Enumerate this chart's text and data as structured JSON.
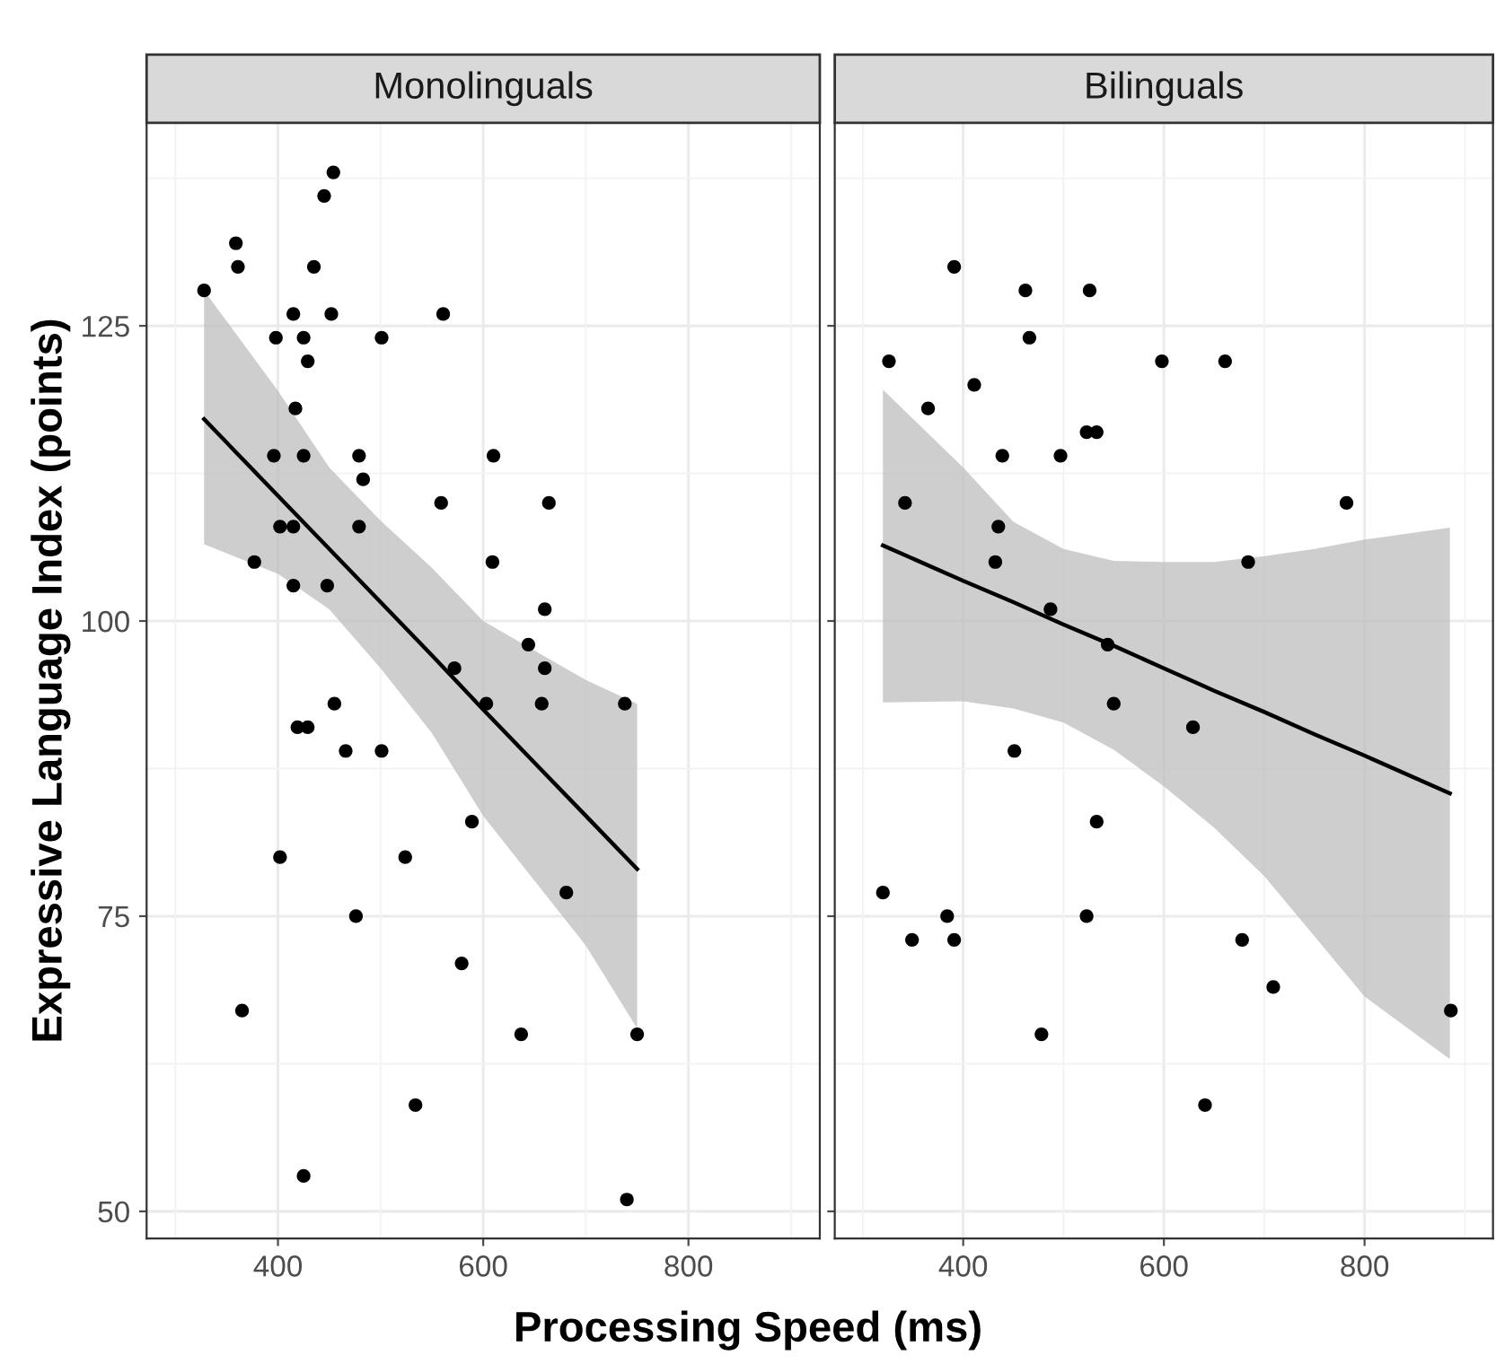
{
  "chart_data": [
    {
      "type": "scatter",
      "title": "Monolinguals",
      "xlabel": "Processing Speed (ms)",
      "ylabel": "Expressive Language Index (points)",
      "xlim": [
        272,
        928
      ],
      "ylim": [
        47.7,
        142.2
      ],
      "xticks": [
        400,
        600,
        800
      ],
      "yticks": [
        50,
        75,
        100,
        125
      ],
      "grid": true,
      "series": [
        {
          "marker": "circle",
          "color": "#000000",
          "x": [
            328,
            359,
            361,
            454,
            445,
            435,
            415,
            452,
            561,
            398,
            425,
            501,
            429,
            417,
            396,
            425,
            479,
            610,
            483,
            559,
            664,
            402,
            415,
            479,
            377,
            609,
            415,
            448,
            660,
            644,
            572,
            660,
            603,
            657,
            738,
            455,
            419,
            429,
            466,
            501,
            589,
            402,
            524,
            681,
            476,
            579,
            365,
            637,
            750,
            534,
            425,
            740
          ],
          "values": [
            128,
            132,
            130,
            138,
            136,
            130,
            126,
            126,
            126,
            124,
            124,
            124,
            122,
            118,
            114,
            114,
            114,
            114,
            112,
            110,
            110,
            108,
            108,
            108,
            105,
            105,
            103,
            103,
            101,
            98,
            96,
            96,
            93,
            93,
            93,
            93,
            91,
            91,
            89,
            89,
            83,
            80,
            80,
            77,
            75,
            71,
            67,
            65,
            65,
            59,
            53,
            51
          ]
        },
        {
          "type": "line",
          "color": "#000000",
          "x": [
            328,
            400,
            450,
            500,
            550,
            600,
            650,
            700,
            750
          ],
          "values": [
            117.1,
            110.6,
            106.1,
            101.6,
            97.1,
            92.5,
            88.0,
            83.5,
            79.0
          ],
          "upper": [
            128,
            119.5,
            113,
            108.5,
            104.5,
            100,
            97.5,
            95,
            93
          ],
          "lower": [
            106.5,
            104,
            101,
            96,
            90.5,
            83.5,
            78,
            72.5,
            65.5
          ]
        }
      ]
    },
    {
      "type": "scatter",
      "title": "Bilinguals",
      "xlim": [
        272,
        928
      ],
      "ylim": [
        47.7,
        142.2
      ],
      "xticks": [
        400,
        600,
        800
      ],
      "yticks": [
        50,
        75,
        100,
        125
      ],
      "grid": true,
      "tick_labels": "x",
      "series": [
        {
          "marker": "circle",
          "color": "#000000",
          "x": [
            326,
            391,
            462,
            526,
            466,
            598,
            661,
            411,
            365,
            523,
            533,
            439,
            497,
            342,
            782,
            435,
            432,
            684,
            487,
            544,
            550,
            629,
            451,
            533,
            320,
            384,
            523,
            349,
            391,
            678,
            709,
            886,
            478,
            641
          ],
          "values": [
            122,
            130,
            128,
            128,
            124,
            122,
            122,
            120,
            118,
            116,
            116,
            114,
            114,
            110,
            110,
            108,
            105,
            105,
            101,
            98,
            93,
            91,
            89,
            83,
            77,
            75,
            75,
            73,
            73,
            73,
            69,
            67,
            65,
            59
          ]
        },
        {
          "type": "line",
          "color": "#000000",
          "x": [
            320,
            400,
            450,
            500,
            550,
            600,
            650,
            700,
            750,
            800,
            885
          ],
          "values": [
            106.4,
            103.4,
            101.6,
            99.7,
            97.9,
            96.0,
            94.1,
            92.3,
            90.4,
            88.6,
            85.4
          ],
          "upper": [
            119.6,
            113,
            108.4,
            106.1,
            105.1,
            105,
            105,
            105.5,
            106.1,
            106.9,
            107.9
          ],
          "lower": [
            93.1,
            93.2,
            92.6,
            91.4,
            89.1,
            86.0,
            82.5,
            78.4,
            73.3,
            68.2,
            62.9
          ]
        }
      ]
    }
  ]
}
